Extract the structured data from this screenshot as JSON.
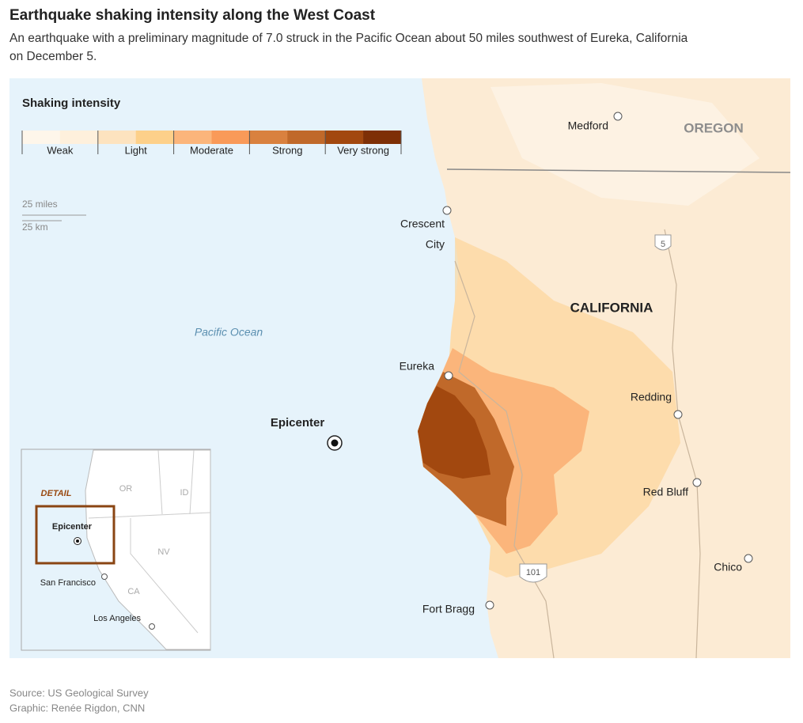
{
  "header": {
    "title": "Earthquake shaking intensity along the West Coast",
    "subtitle": [
      "An earthquake with a preliminary magnitude of 7.0 struck in the Pacific Ocean about 50 miles southwest of Eureka, California",
      "on December 5."
    ]
  },
  "legend": {
    "title": "Shaking intensity",
    "colors": [
      "#fef6ea",
      "#fef0dc",
      "#fde3bf",
      "#fdd08a",
      "#fbb57b",
      "#f99a59",
      "#d9813f",
      "#c0692a",
      "#a2480f",
      "#7e2f06"
    ],
    "labels": [
      "Weak",
      "Light",
      "Moderate",
      "Strong",
      "Very strong"
    ]
  },
  "scale": {
    "miles": "25 miles",
    "km": "25 km"
  },
  "map": {
    "regions": [
      "OREGON",
      "CALIFORNIA"
    ],
    "water": "Pacific Ocean",
    "epicenter": "Epicenter",
    "cities": [
      {
        "lines": [
          "Medford"
        ]
      },
      {
        "lines": [
          "Crescent",
          "City"
        ]
      },
      {
        "lines": [
          "Eureka"
        ]
      },
      {
        "lines": [
          "Redding"
        ]
      },
      {
        "lines": [
          "Red Bluff"
        ]
      },
      {
        "lines": [
          "Chico"
        ]
      },
      {
        "lines": [
          "Fort Bragg"
        ]
      }
    ],
    "highways": [
      "5",
      "101"
    ]
  },
  "inset": {
    "detail": "DETAIL",
    "epicenter": "Epicenter",
    "states": [
      "OR",
      "ID",
      "NV",
      "CA"
    ],
    "cities": [
      "San Francisco",
      "Los Angeles"
    ]
  },
  "footer": {
    "source": "Source: US Geological Survey",
    "credit": "Graphic: Renée Rigdon, CNN"
  }
}
